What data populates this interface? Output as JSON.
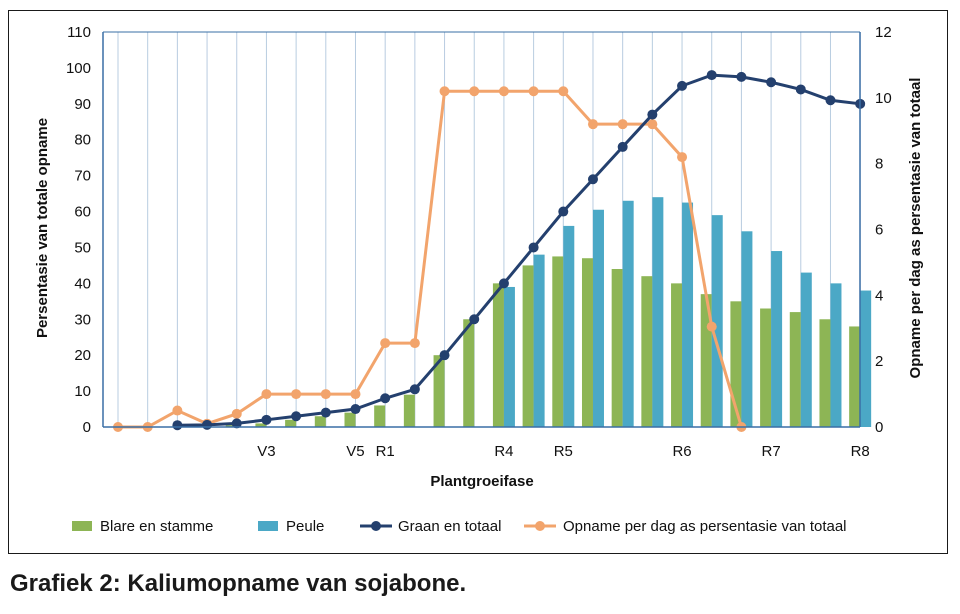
{
  "caption": "Grafiek 2: Kaliumopname van sojabone.",
  "chart_data": {
    "type": "bar",
    "xlabel": "Plantgroeifase",
    "ylabel": "Persentasie van totale opname",
    "y2label": "Opname per dag as persentasie van totaal",
    "ylim": [
      0,
      110
    ],
    "yticks": [
      0,
      10,
      20,
      30,
      40,
      50,
      60,
      70,
      80,
      90,
      100,
      110
    ],
    "y2lim": [
      0,
      12
    ],
    "y2ticks": [
      0,
      2,
      4,
      6,
      8,
      10,
      12
    ],
    "grid": "vertical",
    "legend": "bottom",
    "stage_labels": [
      {
        "index": 5,
        "label": "V3"
      },
      {
        "index": 8,
        "label": "V5"
      },
      {
        "index": 9,
        "label": "R1"
      },
      {
        "index": 13,
        "label": "R4"
      },
      {
        "index": 15,
        "label": "R5"
      },
      {
        "index": 19,
        "label": "R6"
      },
      {
        "index": 22,
        "label": "R7"
      },
      {
        "index": 25,
        "label": "R8"
      }
    ],
    "n_points": 26,
    "series": [
      {
        "name": "Blare en stamme",
        "type": "bar",
        "color": "#8db555",
        "values": [
          0,
          0,
          0,
          0,
          0.5,
          1,
          2,
          3,
          4,
          6,
          9,
          20,
          30,
          40,
          45,
          47.5,
          47,
          44,
          42,
          40,
          37,
          35,
          33,
          32,
          30,
          28
        ]
      },
      {
        "name": "Peule",
        "type": "bar",
        "color": "#4ba8c6",
        "values": [
          0,
          0,
          0,
          0,
          0,
          0,
          0,
          0,
          0,
          0,
          0,
          0,
          0,
          39,
          48,
          56,
          60.5,
          63,
          64,
          62.5,
          59,
          54.5,
          49,
          43,
          40,
          38
        ]
      },
      {
        "name": "Graan en totaal",
        "type": "line",
        "axis": "left",
        "color": "#24406e",
        "values": [
          null,
          null,
          0.5,
          0.6,
          1,
          2,
          3,
          4,
          5,
          8,
          10.5,
          20,
          30,
          40,
          50,
          60,
          69,
          78,
          87,
          95,
          98,
          97.5,
          96,
          94,
          91,
          90
        ]
      },
      {
        "name": "Opname per dag as persentasie van totaal",
        "type": "line",
        "axis": "right",
        "color": "#f2a46c",
        "values": [
          0,
          0,
          0.5,
          0.1,
          0.4,
          1,
          1,
          1,
          1,
          2.55,
          2.55,
          10.2,
          10.2,
          10.2,
          10.2,
          10.2,
          9.2,
          9.2,
          9.2,
          8.2,
          3.05,
          0,
          null,
          null,
          null,
          null
        ]
      }
    ]
  }
}
